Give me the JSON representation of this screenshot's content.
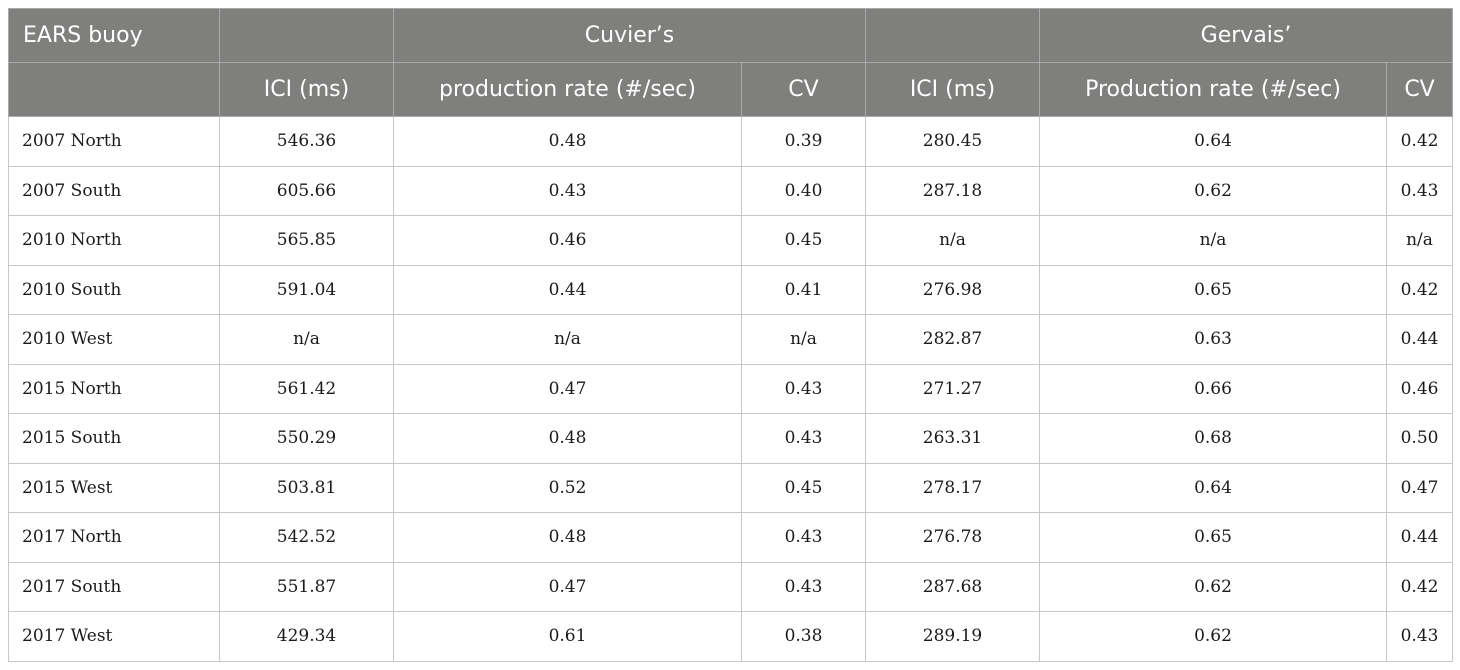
{
  "header": {
    "row1": [
      "EARS buoy",
      "",
      "Cuvier’s",
      "",
      "Gervais’"
    ],
    "row2": [
      "",
      "ICI (ms)",
      "production rate (#/sec)",
      "CV",
      "ICI (ms)",
      "Production rate (#/sec)",
      "CV"
    ]
  },
  "rows": [
    [
      "2007 North",
      "546.36",
      "0.48",
      "0.39",
      "280.45",
      "0.64",
      "0.42"
    ],
    [
      "2007 South",
      "605.66",
      "0.43",
      "0.40",
      "287.18",
      "0.62",
      "0.43"
    ],
    [
      "2010 North",
      "565.85",
      "0.46",
      "0.45",
      "n/a",
      "n/a",
      "n/a"
    ],
    [
      "2010 South",
      "591.04",
      "0.44",
      "0.41",
      "276.98",
      "0.65",
      "0.42"
    ],
    [
      "2010 West",
      "n/a",
      "n/a",
      "n/a",
      "282.87",
      "0.63",
      "0.44"
    ],
    [
      "2015 North",
      "561.42",
      "0.47",
      "0.43",
      "271.27",
      "0.66",
      "0.46"
    ],
    [
      "2015 South",
      "550.29",
      "0.48",
      "0.43",
      "263.31",
      "0.68",
      "0.50"
    ],
    [
      "2015 West",
      "503.81",
      "0.52",
      "0.45",
      "278.17",
      "0.64",
      "0.47"
    ],
    [
      "2017 North",
      "542.52",
      "0.48",
      "0.43",
      "276.78",
      "0.65",
      "0.44"
    ],
    [
      "2017 South",
      "551.87",
      "0.47",
      "0.43",
      "287.68",
      "0.62",
      "0.42"
    ],
    [
      "2017 West",
      "429.34",
      "0.61",
      "0.38",
      "289.19",
      "0.62",
      "0.43"
    ]
  ]
}
